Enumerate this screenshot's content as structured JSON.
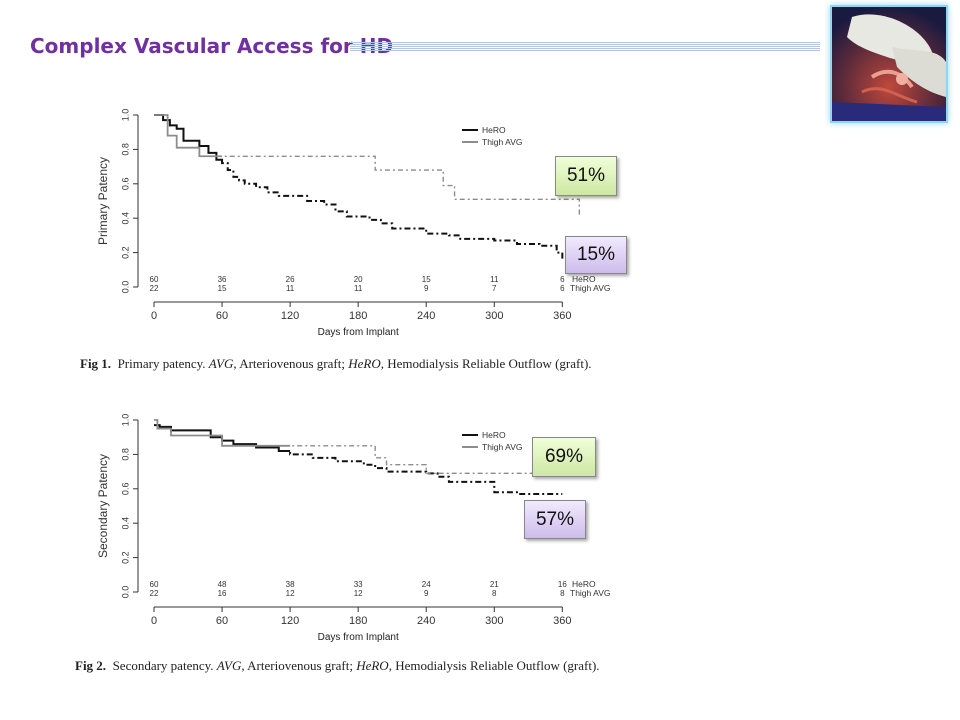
{
  "slide": {
    "title": "Complex Vascular Access for HD",
    "photo_icon": "surgery-photo"
  },
  "badges": [
    "51%",
    "15%",
    "69%",
    "57%"
  ],
  "captions": [
    {
      "fig": "Fig 1.",
      "text": "Primary patency.",
      "abbr1": "AVG",
      "def1": ", Arteriovenous graft; ",
      "abbr2": "HeRO",
      "def2": ", Hemodialysis Reliable Outflow (graft)."
    },
    {
      "fig": "Fig 2.",
      "text": "Secondary patency.",
      "abbr1": "AVG",
      "def1": ", Arteriovenous graft; ",
      "abbr2": "HeRO",
      "def2": ", Hemodialysis Reliable Outflow (graft)."
    }
  ],
  "chart_data": [
    {
      "type": "line",
      "title": "",
      "xlabel": "Days from Implant",
      "ylabel": "Primary Patency",
      "xlim": [
        0,
        365
      ],
      "ylim": [
        0,
        1
      ],
      "xticks": [
        "0",
        "60",
        "120",
        "180",
        "240",
        "300",
        "360"
      ],
      "yticks": [
        "0.0",
        "0.2",
        "0.4",
        "0.6",
        "0.8",
        "1.0"
      ],
      "legend": "top-right",
      "series": [
        {
          "name": "HeRO",
          "color": "#111111",
          "x": [
            0,
            8,
            14,
            20,
            26,
            40,
            48,
            55,
            60,
            65,
            70,
            75,
            80,
            90,
            100,
            110,
            120,
            135,
            150,
            160,
            170,
            190,
            200,
            210,
            240,
            260,
            270,
            300,
            320,
            340,
            355,
            360
          ],
          "y": [
            1.0,
            0.97,
            0.94,
            0.92,
            0.85,
            0.82,
            0.78,
            0.74,
            0.72,
            0.68,
            0.64,
            0.62,
            0.6,
            0.58,
            0.55,
            0.53,
            0.53,
            0.5,
            0.48,
            0.44,
            0.41,
            0.39,
            0.37,
            0.34,
            0.31,
            0.3,
            0.28,
            0.27,
            0.25,
            0.24,
            0.2,
            0.15
          ]
        },
        {
          "name": "Thigh AVG",
          "color": "#8c8c8c",
          "x": [
            0,
            12,
            20,
            40,
            60,
            195,
            255,
            265,
            375
          ],
          "y": [
            1.0,
            0.88,
            0.81,
            0.76,
            0.76,
            0.68,
            0.59,
            0.51,
            0.41
          ]
        }
      ],
      "at_risk": {
        "labels": [
          "HeRO",
          "Thigh AVG"
        ],
        "x": [
          0,
          60,
          120,
          180,
          240,
          300,
          360
        ],
        "HeRO": [
          "60",
          "36",
          "26",
          "20",
          "15",
          "11",
          "6"
        ],
        "Thigh AVG": [
          "22",
          "15",
          "11",
          "11",
          "9",
          "7",
          "6"
        ]
      }
    },
    {
      "type": "line",
      "title": "",
      "xlabel": "Days from Implant",
      "ylabel": "Secondary Patency",
      "xlim": [
        0,
        365
      ],
      "ylim": [
        0,
        1
      ],
      "xticks": [
        "0",
        "60",
        "120",
        "180",
        "240",
        "300",
        "360"
      ],
      "yticks": [
        "0.0",
        "0.2",
        "0.4",
        "0.6",
        "0.8",
        "1.0"
      ],
      "legend": "top-right",
      "series": [
        {
          "name": "HeRO",
          "color": "#111111",
          "x": [
            0,
            5,
            15,
            50,
            60,
            70,
            90,
            110,
            120,
            140,
            160,
            185,
            195,
            205,
            240,
            250,
            260,
            300,
            320,
            360
          ],
          "y": [
            0.97,
            0.96,
            0.94,
            0.9,
            0.88,
            0.86,
            0.84,
            0.82,
            0.8,
            0.78,
            0.76,
            0.74,
            0.72,
            0.7,
            0.69,
            0.67,
            0.64,
            0.58,
            0.57,
            0.57
          ]
        },
        {
          "name": "Thigh AVG",
          "color": "#8c8c8c",
          "x": [
            0,
            3,
            15,
            58,
            60,
            195,
            205,
            240,
            340
          ],
          "y": [
            1.0,
            0.95,
            0.91,
            0.91,
            0.85,
            0.78,
            0.74,
            0.69,
            0.69
          ]
        }
      ],
      "at_risk": {
        "labels": [
          "HeRO",
          "Thigh AVG"
        ],
        "x": [
          0,
          60,
          120,
          180,
          240,
          300,
          360
        ],
        "HeRO": [
          "60",
          "48",
          "38",
          "33",
          "24",
          "21",
          "16"
        ],
        "Thigh AVG": [
          "22",
          "16",
          "12",
          "12",
          "9",
          "8",
          "8"
        ]
      }
    }
  ]
}
